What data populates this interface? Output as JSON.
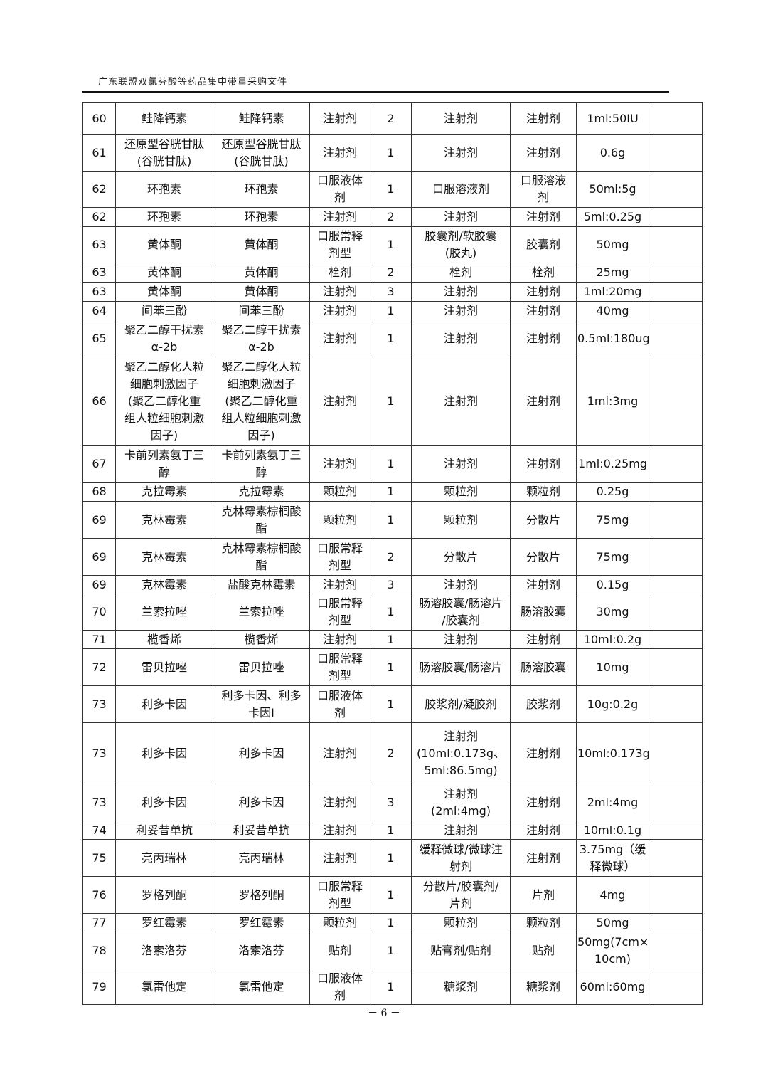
{
  "header": {
    "title": "广东联盟双氯芬酸等药品集中带量采购文件"
  },
  "footer": {
    "page": "－ 6 －"
  },
  "table": {
    "rows": [
      [
        "60",
        "鲑降钙素",
        "鲑降钙素",
        "注射剂",
        "2",
        "注射剂",
        "注射剂",
        "1ml:50IU",
        ""
      ],
      [
        "61",
        "还原型谷胱甘肽\n(谷胱甘肽)",
        "还原型谷胱甘肽\n(谷胱甘肽)",
        "注射剂",
        "1",
        "注射剂",
        "注射剂",
        "0.6g",
        ""
      ],
      [
        "62",
        "环孢素",
        "环孢素",
        "口服液体\n剂",
        "1",
        "口服溶液剂",
        "口服溶液\n剂",
        "50ml:5g",
        ""
      ],
      [
        "62",
        "环孢素",
        "环孢素",
        "注射剂",
        "2",
        "注射剂",
        "注射剂",
        "5ml:0.25g",
        ""
      ],
      [
        "63",
        "黄体酮",
        "黄体酮",
        "口服常释\n剂型",
        "1",
        "胶囊剂/软胶囊\n(胶丸)",
        "胶囊剂",
        "50mg",
        ""
      ],
      [
        "63",
        "黄体酮",
        "黄体酮",
        "栓剂",
        "2",
        "栓剂",
        "栓剂",
        "25mg",
        ""
      ],
      [
        "63",
        "黄体酮",
        "黄体酮",
        "注射剂",
        "3",
        "注射剂",
        "注射剂",
        "1ml:20mg",
        ""
      ],
      [
        "64",
        "间苯三酚",
        "间苯三酚",
        "注射剂",
        "1",
        "注射剂",
        "注射剂",
        "40mg",
        ""
      ],
      [
        "65",
        "聚乙二醇干扰素\nα-2b",
        "聚乙二醇干扰素\nα-2b",
        "注射剂",
        "1",
        "注射剂",
        "注射剂",
        "0.5ml:180ug",
        ""
      ],
      [
        "66",
        "聚乙二醇化人粒\n细胞刺激因子\n(聚乙二醇化重\n组人粒细胞刺激\n因子)",
        "聚乙二醇化人粒\n细胞刺激因子\n(聚乙二醇化重\n组人粒细胞刺激\n因子)",
        "注射剂",
        "1",
        "注射剂",
        "注射剂",
        "1ml:3mg",
        ""
      ],
      [
        "67",
        "卡前列素氨丁三\n醇",
        "卡前列素氨丁三\n醇",
        "注射剂",
        "1",
        "注射剂",
        "注射剂",
        "1ml:0.25mg",
        ""
      ],
      [
        "68",
        "克拉霉素",
        "克拉霉素",
        "颗粒剂",
        "1",
        "颗粒剂",
        "颗粒剂",
        "0.25g",
        ""
      ],
      [
        "69",
        "克林霉素",
        "克林霉素棕榈酸\n酯",
        "颗粒剂",
        "1",
        "颗粒剂",
        "分散片",
        "75mg",
        ""
      ],
      [
        "69",
        "克林霉素",
        "克林霉素棕榈酸\n酯",
        "口服常释\n剂型",
        "2",
        "分散片",
        "分散片",
        "75mg",
        ""
      ],
      [
        "69",
        "克林霉素",
        "盐酸克林霉素",
        "注射剂",
        "3",
        "注射剂",
        "注射剂",
        "0.15g",
        ""
      ],
      [
        "70",
        "兰索拉唑",
        "兰索拉唑",
        "口服常释\n剂型",
        "1",
        "肠溶胶囊/肠溶片\n/胶囊剂",
        "肠溶胶囊",
        "30mg",
        ""
      ],
      [
        "71",
        "榄香烯",
        "榄香烯",
        "注射剂",
        "1",
        "注射剂",
        "注射剂",
        "10ml:0.2g",
        ""
      ],
      [
        "72",
        "雷贝拉唑",
        "雷贝拉唑",
        "口服常释\n剂型",
        "1",
        "肠溶胶囊/肠溶片",
        "肠溶胶囊",
        "10mg",
        ""
      ],
      [
        "73",
        "利多卡因",
        "利多卡因、利多\n卡因Ⅰ",
        "口服液体\n剂",
        "1",
        "胶浆剂/凝胶剂",
        "胶浆剂",
        "10g:0.2g",
        ""
      ],
      [
        "73",
        "利多卡因",
        "利多卡因",
        "注射剂",
        "2",
        "注射剂\n(10ml:0.173g、\n5ml:86.5mg)",
        "注射剂",
        "10ml:0.173g",
        ""
      ],
      [
        "73",
        "利多卡因",
        "利多卡因",
        "注射剂",
        "3",
        "注射剂\n(2ml:4mg)",
        "注射剂",
        "2ml:4mg",
        ""
      ],
      [
        "74",
        "利妥昔单抗",
        "利妥昔单抗",
        "注射剂",
        "1",
        "注射剂",
        "注射剂",
        "10ml:0.1g",
        ""
      ],
      [
        "75",
        "亮丙瑞林",
        "亮丙瑞林",
        "注射剂",
        "1",
        "缓释微球/微球注\n射剂",
        "注射剂",
        "3.75mg（缓\n释微球）",
        ""
      ],
      [
        "76",
        "罗格列酮",
        "罗格列酮",
        "口服常释\n剂型",
        "1",
        "分散片/胶囊剂/\n片剂",
        "片剂",
        "4mg",
        ""
      ],
      [
        "77",
        "罗红霉素",
        "罗红霉素",
        "颗粒剂",
        "1",
        "颗粒剂",
        "颗粒剂",
        "50mg",
        ""
      ],
      [
        "78",
        "洛索洛芬",
        "洛索洛芬",
        "贴剂",
        "1",
        "贴膏剂/贴剂",
        "贴剂",
        "50mg(7cm×\n10cm)",
        ""
      ],
      [
        "79",
        "氯雷他定",
        "氯雷他定",
        "口服液体\n剂",
        "1",
        "糖浆剂",
        "糖浆剂",
        "60ml:60mg",
        ""
      ]
    ]
  }
}
